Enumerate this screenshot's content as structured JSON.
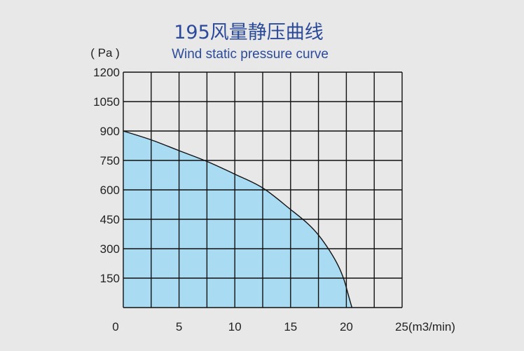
{
  "chart_data": {
    "type": "area",
    "title": "195风量静压曲线",
    "subtitle": "Wind static pressure curve",
    "xlabel": "(m3/min)",
    "ylabel": "( Pa )",
    "xlim": [
      0,
      25
    ],
    "ylim": [
      0,
      1200
    ],
    "x_ticks": [
      0,
      5,
      10,
      15,
      20,
      25
    ],
    "y_ticks": [
      150,
      300,
      450,
      600,
      750,
      900,
      1050,
      1200
    ],
    "x_tick_labels": [
      "0",
      "5",
      "10",
      "15",
      "20",
      "25"
    ],
    "y_tick_labels": [
      "150",
      "300",
      "450",
      "600",
      "750",
      "900",
      "1050",
      "1200"
    ],
    "x_grid_step": 2.5,
    "grid": true,
    "legend": "none",
    "series": [
      {
        "x": [
          0,
          2.5,
          5,
          7.5,
          10,
          12.5,
          15,
          16.5,
          17.5,
          18.5,
          19.3,
          19.8,
          20.2,
          20.5
        ],
        "y": [
          900,
          855,
          800,
          745,
          680,
          610,
          500,
          430,
          370,
          290,
          210,
          140,
          60,
          0
        ]
      }
    ],
    "colors": {
      "fill": "#a9dcf2",
      "line": "#111111",
      "grid": "#111111",
      "title": "#2b4a9a",
      "background": "#e8e8e8"
    }
  }
}
